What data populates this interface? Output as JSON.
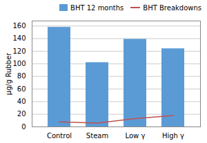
{
  "chart_data": {
    "type": "bar",
    "categories": [
      "Control",
      "Steam",
      "Low γ",
      "High γ"
    ],
    "series": [
      {
        "name": "BHT 12 months",
        "type": "bar",
        "color": "#5b9bd5",
        "values": [
          158,
          102,
          139,
          124
        ]
      },
      {
        "name": "BHT Breakdowns",
        "type": "line",
        "color": "#c0504d",
        "values": [
          8,
          6,
          13,
          18
        ]
      }
    ],
    "ylabel": "μg/g Rubber",
    "ylim": [
      0,
      168
    ],
    "yticks": [
      0,
      20,
      40,
      60,
      80,
      100,
      120,
      140,
      160
    ],
    "grid": true,
    "legend": "upper right"
  }
}
